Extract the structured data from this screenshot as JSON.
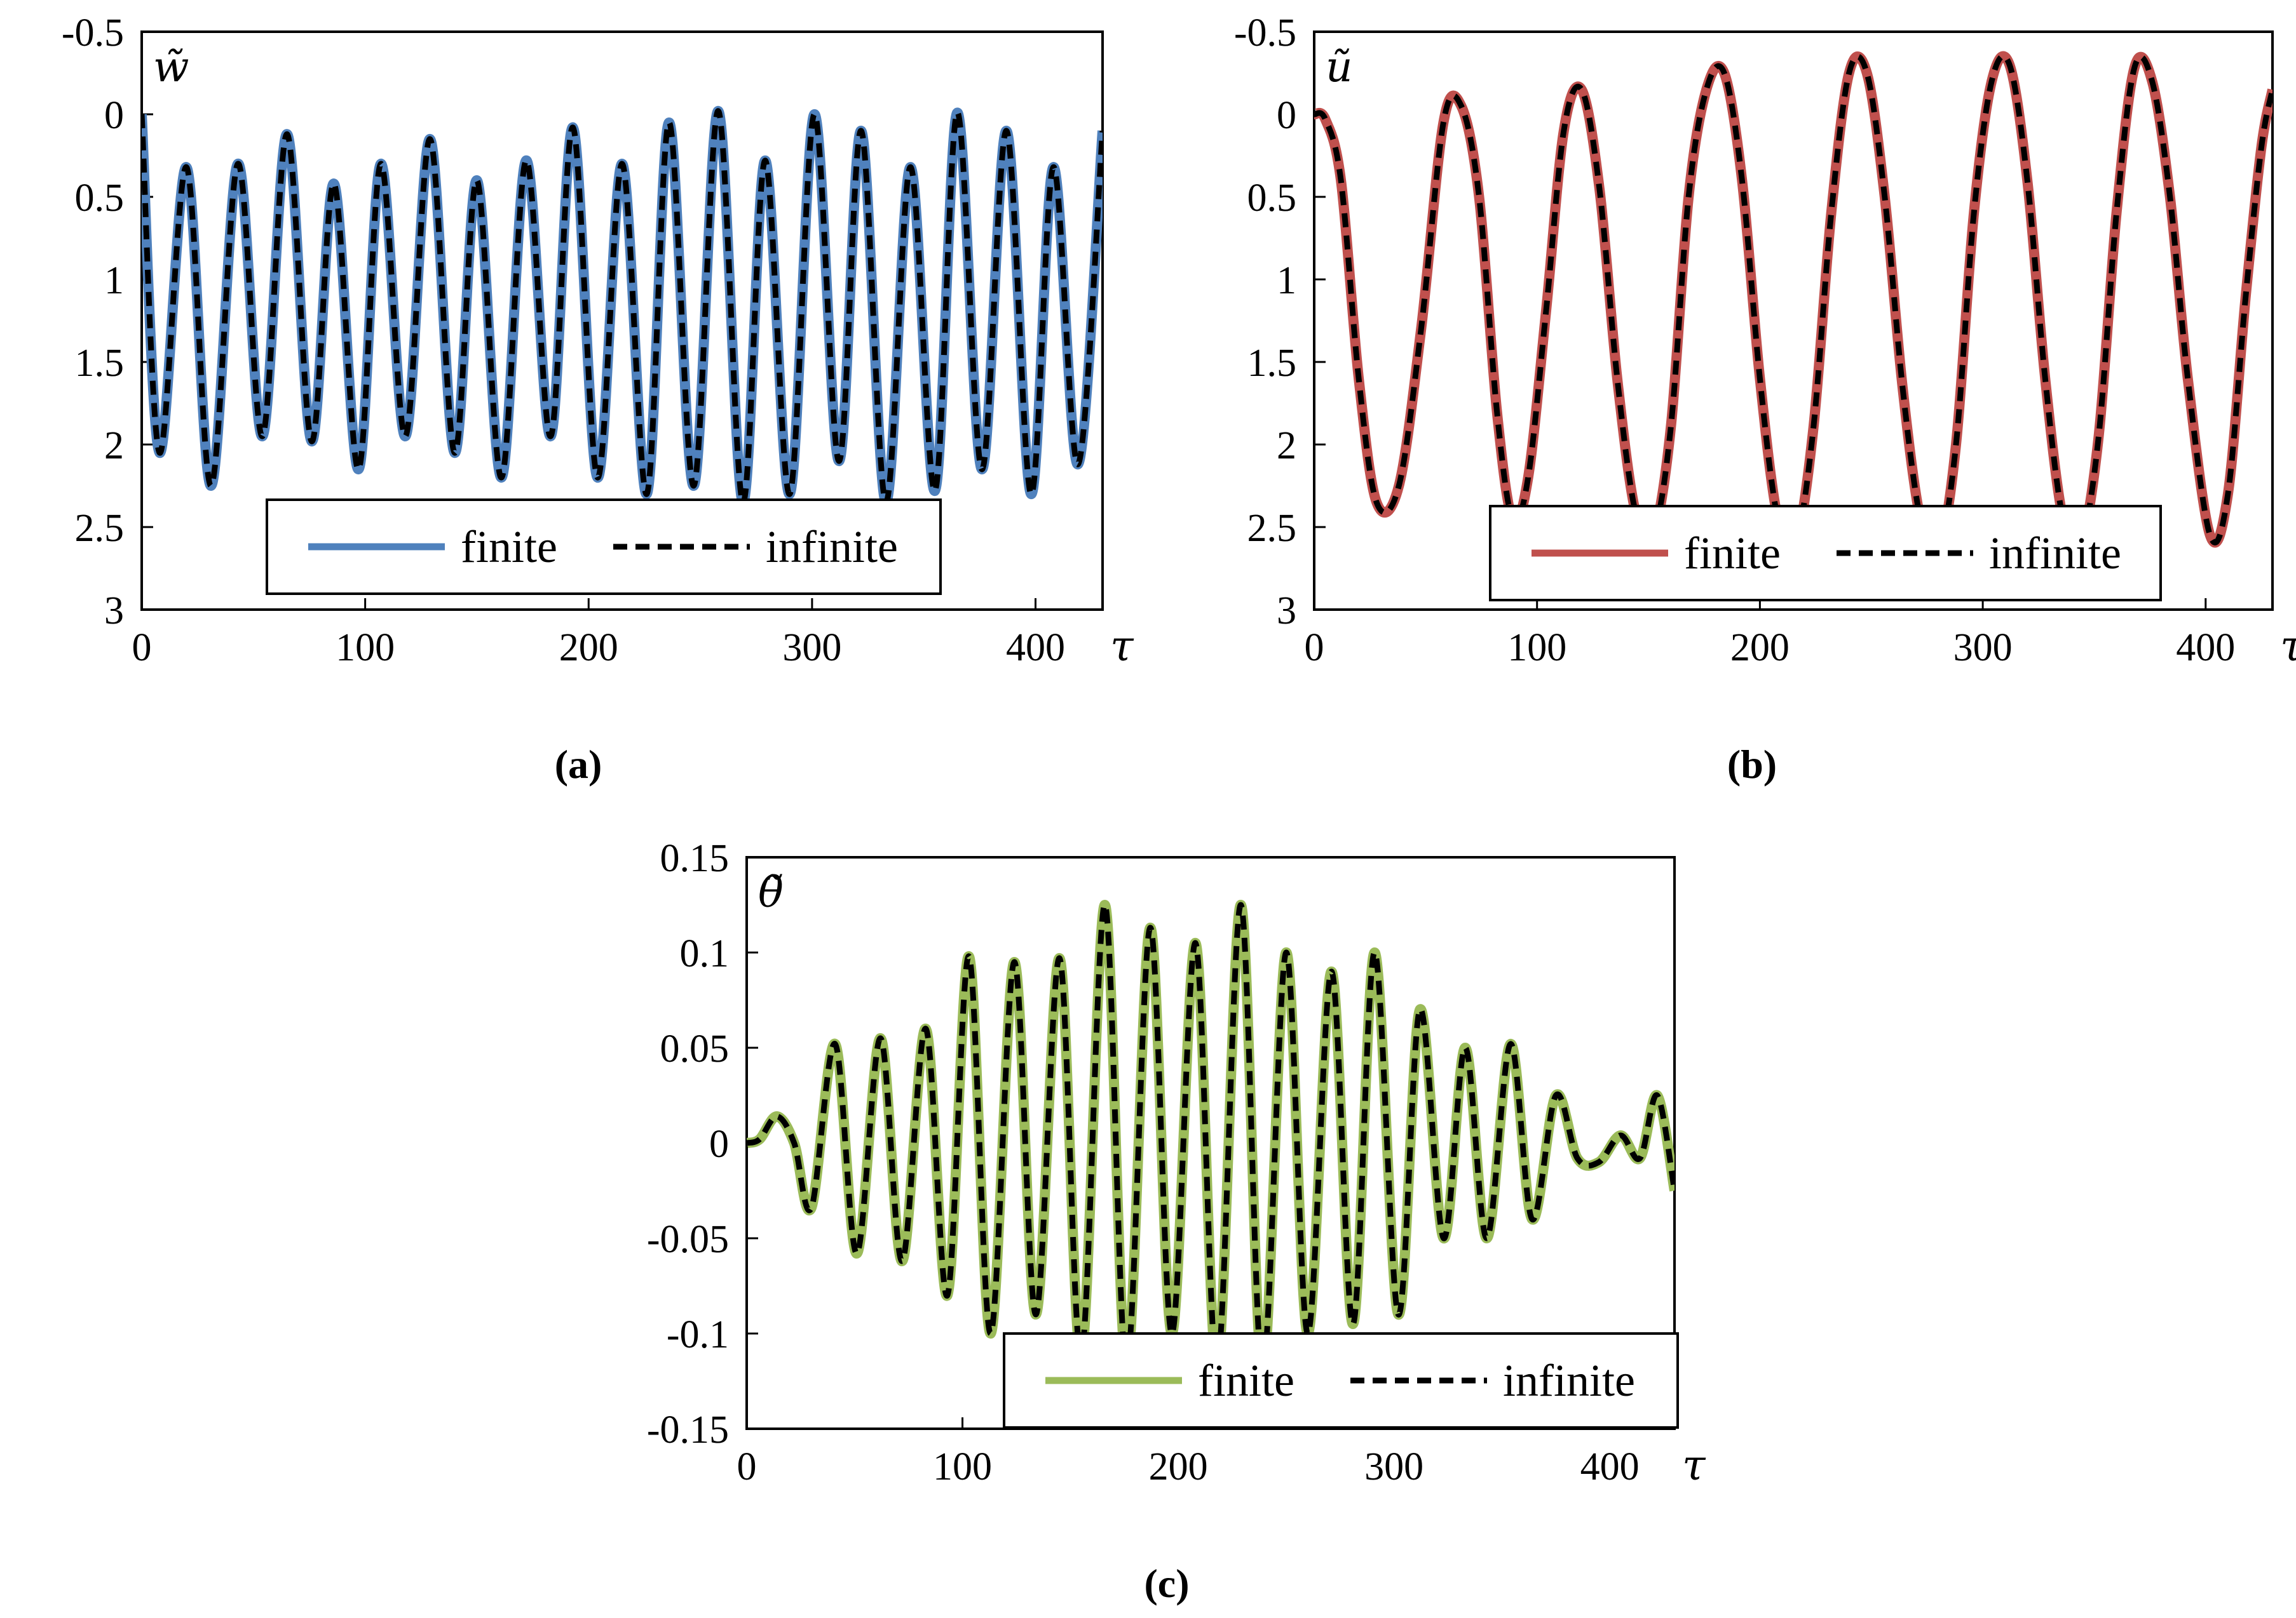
{
  "figure": {
    "captions": [
      "(a)",
      "(b)",
      "(c)"
    ]
  },
  "chart_data": [
    {
      "id": "a",
      "type": "line",
      "ylabel": "w̃",
      "xlabel": "τ",
      "y_inverted": true,
      "xlim": [
        0,
        430
      ],
      "ylim": [
        -0.5,
        3
      ],
      "x_ticks": [
        0,
        100,
        200,
        300,
        400
      ],
      "y_ticks": [
        -0.5,
        0,
        0.5,
        1,
        1.5,
        2,
        2.5,
        3
      ],
      "x_tick_labels": [
        "0",
        "100",
        "200",
        "300",
        "400"
      ],
      "y_tick_labels": [
        "-0.5",
        "0",
        "0.5",
        "1",
        "1.5",
        "2",
        "2.5",
        "3"
      ],
      "legend": {
        "position": "bottom-center",
        "entries": [
          "finite",
          "infinite"
        ]
      },
      "series": [
        {
          "name": "finite",
          "color": "#4f81bd",
          "style": "solid",
          "x": [
            0,
            8,
            20,
            31,
            43,
            54,
            65,
            76,
            86,
            97,
            107,
            118,
            129,
            140,
            150,
            161,
            172,
            183,
            193,
            204,
            215,
            226,
            236,
            247,
            258,
            269,
            279,
            290,
            301,
            312,
            322,
            333,
            344,
            355,
            365,
            376,
            387,
            398,
            408,
            419,
            430
          ],
          "y": [
            0.0,
            2.05,
            0.32,
            2.25,
            0.3,
            1.95,
            0.12,
            1.98,
            0.42,
            2.15,
            0.3,
            1.95,
            0.15,
            2.05,
            0.4,
            2.2,
            0.28,
            1.95,
            0.08,
            2.2,
            0.3,
            2.3,
            0.05,
            2.25,
            -0.02,
            2.35,
            0.28,
            2.3,
            0.0,
            2.1,
            0.1,
            2.35,
            0.32,
            2.28,
            -0.01,
            2.15,
            0.1,
            2.3,
            0.32,
            2.12,
            0.1
          ]
        },
        {
          "name": "infinite",
          "color": "#000000",
          "style": "dashed",
          "x": [
            0,
            8,
            20,
            31,
            43,
            54,
            65,
            76,
            86,
            97,
            107,
            118,
            129,
            140,
            150,
            161,
            172,
            183,
            193,
            204,
            215,
            226,
            236,
            247,
            258,
            269,
            279,
            290,
            301,
            312,
            322,
            333,
            344,
            355,
            365,
            376,
            387,
            398,
            408,
            419,
            430
          ],
          "y": [
            0.0,
            2.05,
            0.32,
            2.25,
            0.3,
            1.95,
            0.12,
            1.98,
            0.42,
            2.15,
            0.3,
            1.95,
            0.15,
            2.05,
            0.4,
            2.2,
            0.28,
            1.95,
            0.08,
            2.2,
            0.3,
            2.3,
            0.05,
            2.25,
            -0.02,
            2.35,
            0.28,
            2.3,
            0.0,
            2.1,
            0.1,
            2.35,
            0.32,
            2.28,
            -0.01,
            2.15,
            0.1,
            2.3,
            0.32,
            2.12,
            0.1
          ]
        }
      ]
    },
    {
      "id": "b",
      "type": "line",
      "ylabel": "ũ",
      "xlabel": "τ",
      "y_inverted": true,
      "xlim": [
        0,
        430
      ],
      "ylim": [
        -0.5,
        3
      ],
      "x_ticks": [
        0,
        100,
        200,
        300,
        400
      ],
      "y_ticks": [
        -0.5,
        0,
        0.5,
        1,
        1.5,
        2,
        2.5,
        3
      ],
      "x_tick_labels": [
        "0",
        "100",
        "200",
        "300",
        "400"
      ],
      "y_tick_labels": [
        "-0.5",
        "0",
        "0.5",
        "1",
        "1.5",
        "2",
        "2.5",
        "3"
      ],
      "legend": {
        "position": "bottom-right",
        "entries": [
          "finite",
          "infinite"
        ]
      },
      "series": [
        {
          "name": "finite",
          "color": "#c0504d",
          "style": "solid",
          "x": [
            0,
            5,
            12,
            20,
            28,
            38,
            48,
            58,
            66,
            74,
            82,
            89,
            96,
            104,
            112,
            120,
            128,
            136,
            144,
            152,
            160,
            168,
            176,
            184,
            192,
            200,
            208,
            216,
            224,
            232,
            240,
            248,
            256,
            264,
            272,
            280,
            288,
            296,
            304,
            312,
            320,
            328,
            336,
            344,
            352,
            360,
            368,
            376,
            384,
            392,
            402,
            410,
            418,
            425,
            430
          ],
          "y": [
            0.0,
            0.03,
            0.4,
            1.6,
            2.35,
            2.25,
            1.3,
            0.05,
            -0.05,
            0.5,
            1.8,
            2.45,
            2.2,
            1.2,
            0.1,
            -0.15,
            0.45,
            1.6,
            2.4,
            2.55,
            1.9,
            0.5,
            -0.15,
            -0.25,
            0.4,
            1.6,
            2.45,
            2.6,
            1.9,
            0.6,
            -0.25,
            -0.25,
            0.5,
            1.65,
            2.45,
            2.65,
            2.0,
            0.6,
            -0.2,
            -0.3,
            0.4,
            1.6,
            2.45,
            2.6,
            1.95,
            0.6,
            -0.28,
            -0.2,
            0.5,
            1.6,
            2.55,
            2.3,
            1.1,
            0.2,
            -0.15
          ]
        },
        {
          "name": "infinite",
          "color": "#000000",
          "style": "dashed",
          "x": [
            0,
            5,
            12,
            20,
            28,
            38,
            48,
            58,
            66,
            74,
            82,
            89,
            96,
            104,
            112,
            120,
            128,
            136,
            144,
            152,
            160,
            168,
            176,
            184,
            192,
            200,
            208,
            216,
            224,
            232,
            240,
            248,
            256,
            264,
            272,
            280,
            288,
            296,
            304,
            312,
            320,
            328,
            336,
            344,
            352,
            360,
            368,
            376,
            384,
            392,
            402,
            410,
            418,
            425,
            430
          ],
          "y": [
            0.0,
            0.03,
            0.4,
            1.6,
            2.35,
            2.25,
            1.3,
            0.05,
            -0.05,
            0.5,
            1.8,
            2.45,
            2.2,
            1.2,
            0.1,
            -0.15,
            0.45,
            1.6,
            2.4,
            2.55,
            1.9,
            0.5,
            -0.15,
            -0.25,
            0.4,
            1.6,
            2.45,
            2.6,
            1.9,
            0.6,
            -0.25,
            -0.25,
            0.5,
            1.65,
            2.45,
            2.65,
            2.0,
            0.6,
            -0.2,
            -0.3,
            0.4,
            1.6,
            2.45,
            2.6,
            1.95,
            0.6,
            -0.28,
            -0.2,
            0.5,
            1.6,
            2.55,
            2.3,
            1.1,
            0.2,
            -0.15
          ]
        }
      ]
    },
    {
      "id": "c",
      "type": "line",
      "ylabel": "θ̃",
      "xlabel": "τ",
      "y_inverted": false,
      "xlim": [
        0,
        430
      ],
      "ylim": [
        -0.15,
        0.15
      ],
      "x_ticks": [
        0,
        100,
        200,
        300,
        400
      ],
      "y_ticks": [
        0.15,
        0.1,
        0.05,
        0,
        -0.05,
        -0.1,
        -0.15
      ],
      "x_tick_labels": [
        "0",
        "100",
        "200",
        "300",
        "400"
      ],
      "y_tick_labels": [
        "0.15",
        "0.1",
        "0.05",
        "0",
        "-0.05",
        "-0.1",
        "-0.15"
      ],
      "legend": {
        "position": "bottom-right",
        "entries": [
          "finite",
          "infinite"
        ]
      },
      "series": [
        {
          "name": "finite",
          "color": "#9bbb59",
          "style": "solid",
          "x": [
            0,
            6,
            14,
            22,
            30,
            41,
            51,
            62,
            72,
            83,
            93,
            103,
            113,
            124,
            134,
            145,
            155,
            166,
            176,
            187,
            197,
            208,
            218,
            229,
            239,
            250,
            260,
            271,
            281,
            291,
            302,
            312,
            323,
            333,
            343,
            354,
            364,
            375,
            385,
            395,
            405,
            414,
            422,
            430
          ],
          "y": [
            0.0,
            0.002,
            0.014,
            0.0,
            -0.034,
            0.052,
            -0.058,
            0.055,
            -0.062,
            0.06,
            -0.08,
            0.098,
            -0.1,
            0.095,
            -0.09,
            0.097,
            -0.112,
            0.125,
            -0.118,
            0.113,
            -0.1,
            0.105,
            -0.118,
            0.125,
            -0.12,
            0.1,
            -0.1,
            0.09,
            -0.095,
            0.1,
            -0.09,
            0.07,
            -0.05,
            0.05,
            -0.05,
            0.052,
            -0.04,
            0.025,
            -0.008,
            -0.01,
            0.004,
            -0.008,
            0.025,
            -0.025
          ]
        },
        {
          "name": "infinite",
          "color": "#000000",
          "style": "dashed",
          "x": [
            0,
            6,
            14,
            22,
            30,
            41,
            51,
            62,
            72,
            83,
            93,
            103,
            113,
            124,
            134,
            145,
            155,
            166,
            176,
            187,
            197,
            208,
            218,
            229,
            239,
            250,
            260,
            271,
            281,
            291,
            302,
            312,
            323,
            333,
            343,
            354,
            364,
            375,
            385,
            395,
            405,
            414,
            422,
            430
          ],
          "y": [
            0.0,
            0.002,
            0.014,
            0.0,
            -0.034,
            0.052,
            -0.058,
            0.055,
            -0.062,
            0.06,
            -0.08,
            0.098,
            -0.1,
            0.095,
            -0.09,
            0.097,
            -0.112,
            0.125,
            -0.118,
            0.113,
            -0.1,
            0.105,
            -0.118,
            0.125,
            -0.12,
            0.1,
            -0.1,
            0.09,
            -0.095,
            0.1,
            -0.09,
            0.07,
            -0.05,
            0.05,
            -0.05,
            0.052,
            -0.04,
            0.025,
            -0.008,
            -0.01,
            0.004,
            -0.008,
            0.025,
            -0.025
          ]
        }
      ]
    }
  ]
}
